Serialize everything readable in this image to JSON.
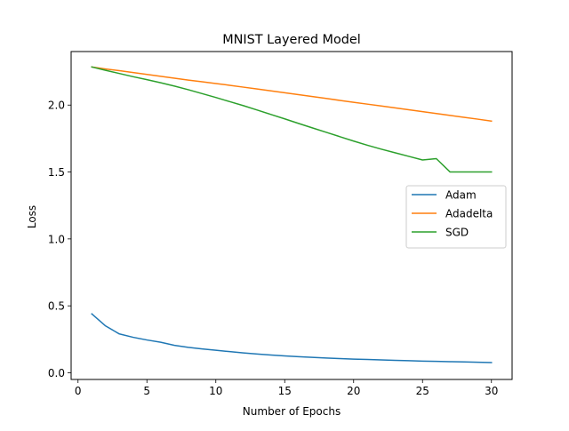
{
  "chart_data": {
    "type": "line",
    "title": "MNIST Layered Model",
    "xlabel": "Number of Epochs",
    "ylabel": "Loss",
    "xlim": [
      -0.5,
      31.5
    ],
    "ylim": [
      -0.05,
      2.4
    ],
    "xticks": [
      0,
      5,
      10,
      15,
      20,
      25,
      30
    ],
    "xtick_labels": [
      "0",
      "5",
      "10",
      "15",
      "20",
      "25",
      "30"
    ],
    "yticks": [
      0.0,
      0.5,
      1.0,
      1.5,
      2.0
    ],
    "ytick_labels": [
      "0.0",
      "0.5",
      "1.0",
      "1.5",
      "2.0"
    ],
    "grid": false,
    "legend_position": "center-right",
    "x": [
      1,
      2,
      3,
      4,
      5,
      6,
      7,
      8,
      9,
      10,
      11,
      12,
      13,
      14,
      15,
      16,
      17,
      18,
      19,
      20,
      21,
      22,
      23,
      24,
      25,
      26,
      27,
      28,
      29,
      30
    ],
    "series": [
      {
        "name": "Adam",
        "color": "#1f77b4",
        "values": [
          0.44,
          0.35,
          0.29,
          0.265,
          0.245,
          0.228,
          0.205,
          0.19,
          0.178,
          0.168,
          0.158,
          0.148,
          0.14,
          0.133,
          0.126,
          0.12,
          0.115,
          0.11,
          0.106,
          0.102,
          0.099,
          0.096,
          0.093,
          0.09,
          0.087,
          0.085,
          0.083,
          0.081,
          0.079,
          0.076
        ]
      },
      {
        "name": "Adadelta",
        "color": "#ff7f0e",
        "values": [
          2.285,
          2.27,
          2.257,
          2.243,
          2.229,
          2.215,
          2.201,
          2.187,
          2.174,
          2.161,
          2.148,
          2.134,
          2.12,
          2.106,
          2.092,
          2.078,
          2.064,
          2.05,
          2.035,
          2.021,
          2.007,
          1.993,
          1.979,
          1.965,
          1.951,
          1.937,
          1.923,
          1.909,
          1.895,
          1.88
        ]
      },
      {
        "name": "SGD",
        "color": "#2ca02c",
        "values": [
          2.285,
          2.26,
          2.236,
          2.212,
          2.19,
          2.167,
          2.142,
          2.115,
          2.086,
          2.057,
          2.026,
          1.996,
          1.963,
          1.93,
          1.897,
          1.863,
          1.83,
          1.797,
          1.764,
          1.731,
          1.7,
          1.671,
          1.644,
          1.617,
          1.59,
          1.6,
          1.5,
          1.5,
          1.5,
          1.5
        ]
      }
    ]
  }
}
